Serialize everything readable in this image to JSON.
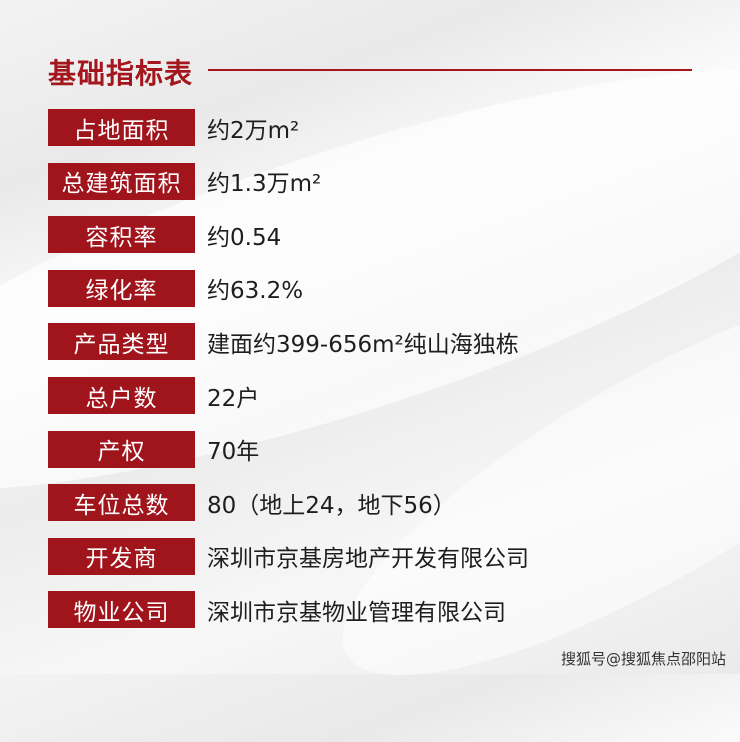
{
  "title": "基础指标表",
  "rows": [
    {
      "label": "占地面积",
      "value": "约2万m²"
    },
    {
      "label": "总建筑面积",
      "value": "约1.3万m²"
    },
    {
      "label": "容积率",
      "value": "约0.54"
    },
    {
      "label": "绿化率",
      "value": "约63.2%"
    },
    {
      "label": "产品类型",
      "value": "建面约399-656m²纯山海独栋"
    },
    {
      "label": "总户数",
      "value": "22户"
    },
    {
      "label": "产权",
      "value": "70年"
    },
    {
      "label": "车位总数",
      "value": "80（地上24，地下56）"
    },
    {
      "label": "开发商",
      "value": "深圳市京基房地产开发有限公司"
    },
    {
      "label": "物业公司",
      "value": "深圳市京基物业管理有限公司"
    }
  ],
  "watermark": "搜狐号@搜狐焦点邵阳站",
  "colors": {
    "accent": "#a0141c"
  }
}
